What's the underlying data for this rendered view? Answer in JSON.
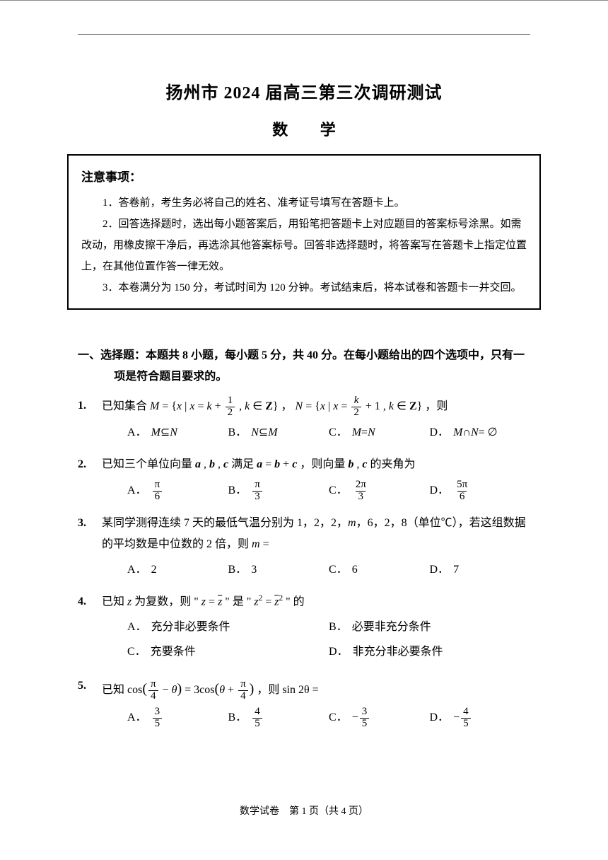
{
  "title": "扬州市 2024 届高三第三次调研测试",
  "subtitle": "数 学",
  "notice": {
    "heading": "注意事项：",
    "items": [
      "1．答卷前，考生务必将自己的姓名、准考证号填写在答题卡上。",
      "2．回答选择题时，选出每小题答案后，用铅笔把答题卡上对应题目的答案标号涂黑。如需改动，用橡皮擦干净后，再选涂其他答案标号。回答非选择题时，将答案写在答题卡上指定位置上，在其他位置作答一律无效。",
      "3．本卷满分为 150 分，考试时间为 120 分钟。考试结束后，将本试卷和答题卡一并交回。"
    ]
  },
  "section1": "一、选择题：本题共 8 小题，每小题 5 分，共 40 分。在每小题给出的四个选项中，只有一项是符合题目要求的。",
  "q1": {
    "num": "1.",
    "stem_pre": "已知集合 ",
    "stem_post": " ，则",
    "A": "M ⊆ N",
    "B": "N ⊆ M",
    "C": "M = N",
    "D": "M ∩ N = ∅"
  },
  "q2": {
    "num": "2.",
    "stem": "已知三个单位向量 a , b , c 满足 a = b + c ，则向量 b , c 的夹角为"
  },
  "q3": {
    "num": "3.",
    "stem": "某同学测得连续 7 天的最低气温分别为 1，2，2，m，6，2，8（单位℃），若这组数据的平均数是中位数的 2 倍，则 m =",
    "A": "2",
    "B": "3",
    "C": "6",
    "D": "7"
  },
  "q4": {
    "num": "4.",
    "stem": "已知 z 为复数，则 \" z = z̄ \" 是 \" z² = z̄² \" 的",
    "A": "充分非必要条件",
    "B": "必要非充分条件",
    "C": "充要条件",
    "D": "非充分非必要条件"
  },
  "q5": {
    "num": "5.",
    "stem_pre": "已知 ",
    "stem_post": " ，则 sin 2θ ="
  },
  "footer": "数学试卷　第 1 页（共 4 页）",
  "labels": {
    "A": "A．",
    "B": "B．",
    "C": "C．",
    "D": "D．"
  }
}
